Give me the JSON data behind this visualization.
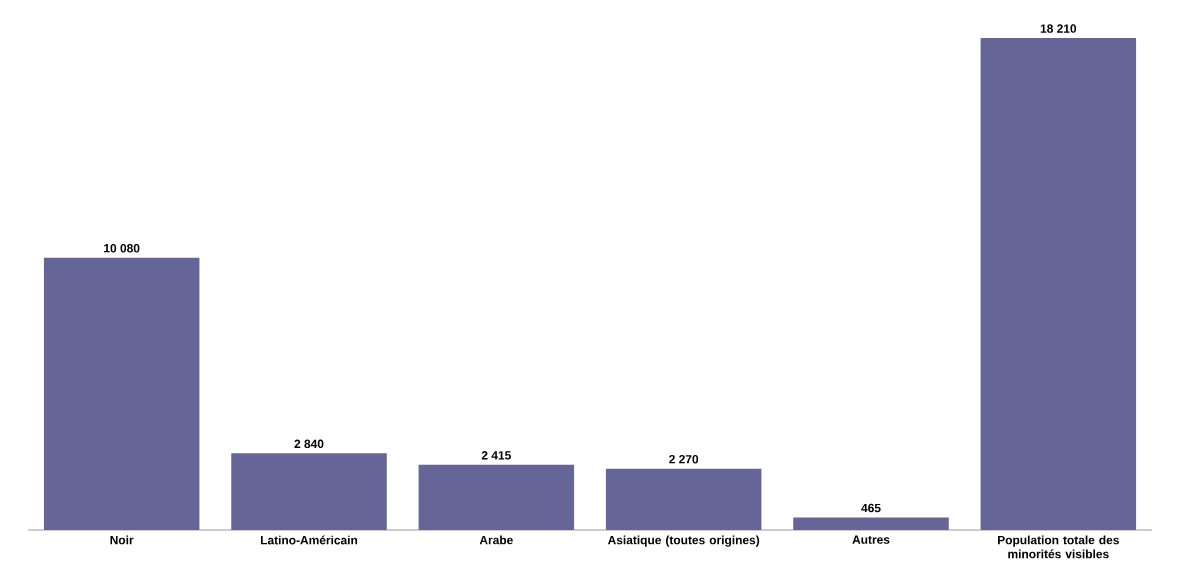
{
  "chart_data": {
    "type": "bar",
    "categories": [
      "Noir",
      "Latino-Américain",
      "Arabe",
      "Asiatique (toutes origines)",
      "Autres",
      "Population totale des minorités visibles"
    ],
    "values": [
      10080,
      2840,
      2415,
      2270,
      465,
      18210
    ],
    "value_labels": [
      "10 080",
      "2 840",
      "2 415",
      "2 270",
      "465",
      "18 210"
    ],
    "color": "#656597",
    "grid": false
  }
}
